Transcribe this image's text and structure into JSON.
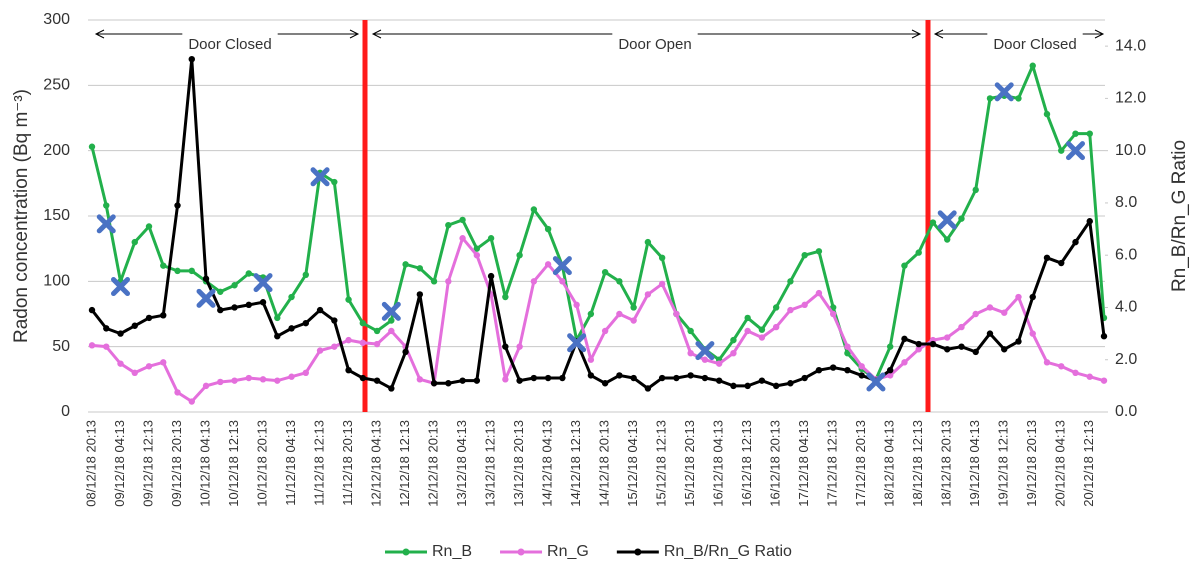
{
  "chart_data": {
    "type": "line",
    "y_label": "Radon concentration (Bq m⁻³)",
    "y2_label": "Rn_B/Rn_G Ratio",
    "annotations": [
      "Door Closed",
      "Door Open",
      "Door Closed"
    ],
    "categories": [
      "08/12/18 20:13",
      null,
      "09/12/18 04:13",
      null,
      "09/12/18 12:13",
      null,
      "09/12/18 20:13",
      null,
      "10/12/18 04:13",
      null,
      "10/12/18 12:13",
      null,
      "10/12/18 20:13",
      null,
      "11/12/18 04:13",
      null,
      "11/12/18 12:13",
      null,
      "11/12/18 20:13",
      null,
      "12/12/18 04:13",
      null,
      "12/12/18 12:13",
      null,
      "12/12/18 20:13",
      null,
      "13/12/18 04:13",
      null,
      "13/12/18 12:13",
      null,
      "13/12/18 20:13",
      null,
      "14/12/18 04:13",
      null,
      "14/12/18 12:13",
      null,
      "14/12/18 20:13",
      null,
      "15/12/18 04:13",
      null,
      "15/12/18 12:13",
      null,
      "15/12/18 20:13",
      null,
      "16/12/18 04:13",
      null,
      "16/12/18 12:13",
      null,
      "16/12/18 20:13",
      null,
      "17/12/18 04:13",
      null,
      "17/12/18 12:13",
      null,
      "17/12/18 20:13",
      null,
      "18/12/18 04:13",
      null,
      "18/12/18 12:13",
      null,
      "18/12/18 20:13",
      null,
      "19/12/18 04:13",
      null,
      "19/12/18 12:13",
      null,
      "19/12/18 20:13",
      null,
      "20/12/18 04:13",
      null,
      "20/12/18 12:13",
      null
    ],
    "series": [
      {
        "name": "Rn_B",
        "color": "#22b04b",
        "values": [
          203,
          158,
          100,
          130,
          142,
          112,
          108,
          108,
          100,
          92,
          97,
          106,
          103,
          72,
          88,
          105,
          183,
          176,
          86,
          68,
          62,
          70,
          113,
          110,
          100,
          143,
          147,
          125,
          133,
          88,
          120,
          155,
          140,
          112,
          55,
          75,
          107,
          100,
          80,
          130,
          118,
          75,
          62,
          48,
          40,
          55,
          72,
          63,
          80,
          100,
          120,
          123,
          80,
          45,
          33,
          25,
          50,
          112,
          122,
          145,
          132,
          148,
          170,
          240,
          242,
          240,
          265,
          228,
          200,
          213,
          213,
          72
        ]
      },
      {
        "name": "Rn_G",
        "color": "#e46fdc",
        "values": [
          51,
          50,
          37,
          30,
          35,
          38,
          15,
          8,
          20,
          23,
          24,
          26,
          25,
          24,
          27,
          30,
          47,
          50,
          55,
          53,
          52,
          62,
          50,
          25,
          22,
          100,
          133,
          120,
          90,
          25,
          50,
          100,
          113,
          100,
          82,
          40,
          62,
          75,
          70,
          90,
          98,
          75,
          45,
          40,
          37,
          45,
          62,
          57,
          65,
          78,
          82,
          91,
          75,
          50,
          35,
          25,
          28,
          38,
          48,
          55,
          57,
          65,
          75,
          80,
          76,
          88,
          60,
          38,
          35,
          30,
          27,
          24
        ]
      },
      {
        "name": "Rn_B/Rn_G Ratio",
        "color": "#000000",
        "axis": "y2",
        "values": [
          3.9,
          3.2,
          3.0,
          3.3,
          3.6,
          3.7,
          7.9,
          13.5,
          5.1,
          3.9,
          4.0,
          4.1,
          4.2,
          2.9,
          3.2,
          3.4,
          3.9,
          3.5,
          1.6,
          1.3,
          1.2,
          0.9,
          2.3,
          4.5,
          1.1,
          1.1,
          1.2,
          1.2,
          5.2,
          2.5,
          1.2,
          1.3,
          1.3,
          1.3,
          2.7,
          1.4,
          1.1,
          1.4,
          1.3,
          0.9,
          1.3,
          1.3,
          1.4,
          1.3,
          1.2,
          1.0,
          1.0,
          1.2,
          1.0,
          1.1,
          1.3,
          1.6,
          1.7,
          1.6,
          1.4,
          1.2,
          1.6,
          2.8,
          2.6,
          2.6,
          2.4,
          2.5,
          2.3,
          3.0,
          2.4,
          2.7,
          4.4,
          5.9,
          5.7,
          6.5,
          7.3,
          2.9
        ]
      }
    ],
    "marked_values": [
      null,
      144,
      96,
      null,
      null,
      null,
      null,
      null,
      87,
      null,
      null,
      null,
      99,
      null,
      null,
      null,
      180,
      null,
      null,
      null,
      null,
      77,
      null,
      null,
      null,
      null,
      null,
      null,
      null,
      null,
      null,
      null,
      null,
      112,
      53,
      null,
      null,
      null,
      null,
      null,
      null,
      null,
      null,
      47,
      null,
      null,
      null,
      null,
      null,
      null,
      null,
      null,
      null,
      null,
      null,
      23,
      null,
      null,
      null,
      null,
      147,
      null,
      null,
      null,
      245,
      null,
      null,
      null,
      null,
      200,
      null,
      null
    ],
    "marked_color": "#4a72c4",
    "ylim": [
      0,
      300
    ],
    "yticks": [
      0,
      50,
      100,
      150,
      200,
      250,
      300
    ],
    "y2lim": [
      0,
      15
    ],
    "y2ticks": [
      {
        "value": 0,
        "label": "0.0"
      },
      {
        "value": 2,
        "label": "2.0"
      },
      {
        "value": 4,
        "label": "4.0"
      },
      {
        "value": 6,
        "label": "6.0"
      },
      {
        "value": 8,
        "label": "8.0"
      },
      {
        "value": 10,
        "label": "10.0"
      },
      {
        "value": 12,
        "label": "12.0"
      },
      {
        "value": 14,
        "label": "14.0"
      }
    ],
    "divider_color": "#ff1a1a",
    "grid": true
  }
}
